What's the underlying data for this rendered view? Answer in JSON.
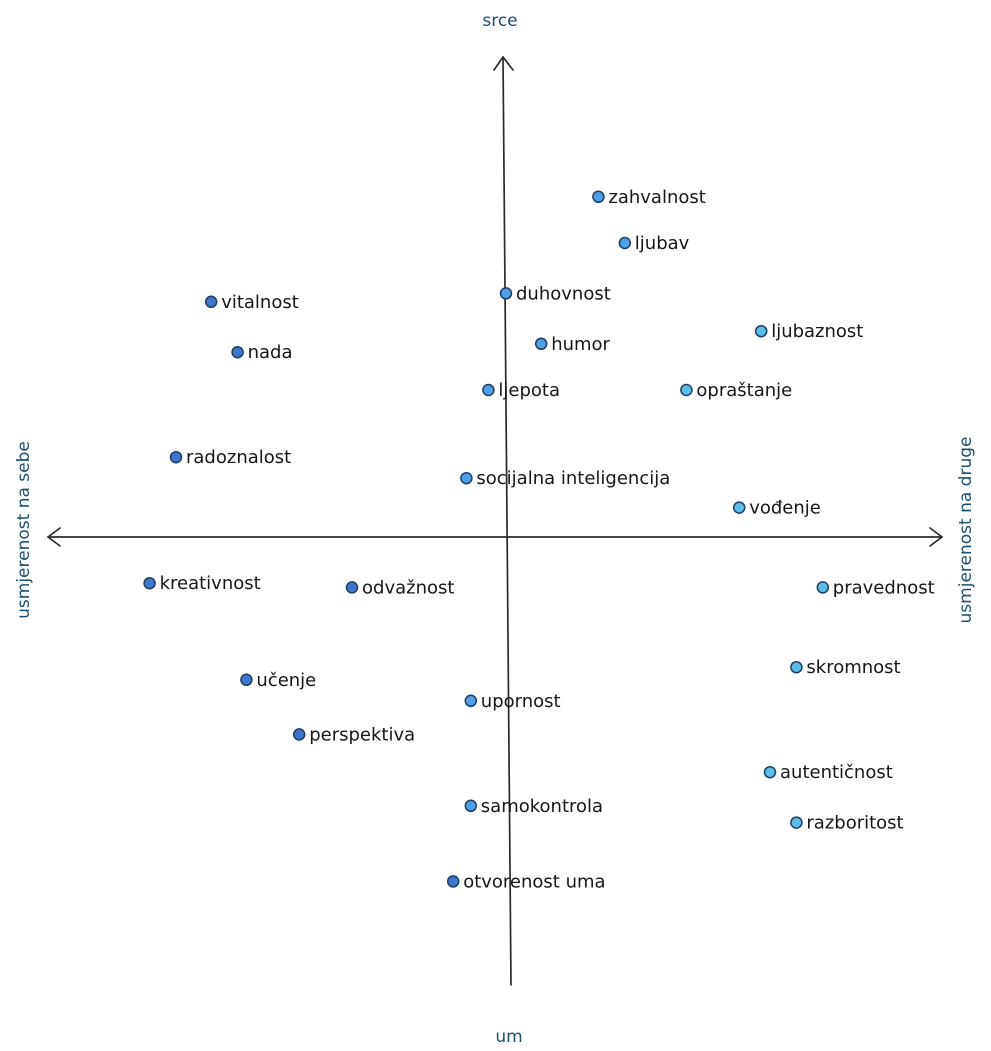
{
  "axes": {
    "top": "srce",
    "bottom": "um",
    "left": "usmjerenost na sebe",
    "right": "usmjerenost na druge"
  },
  "colors": {
    "dot_dark": "#3f76cc",
    "dot_mid": "#4f9ee6",
    "dot_light": "#5dbde9",
    "dot_stroke": "#1d3f66",
    "axis_text": "#1d4f6e",
    "axis_line": "#2b2b2b"
  },
  "chart_data": {
    "type": "scatter",
    "xlabel_left": "usmjerenost na sebe",
    "xlabel_right": "usmjerenost na druge",
    "ylabel_top": "srce",
    "ylabel_bottom": "um",
    "xlim": [
      -100,
      100
    ],
    "ylim": [
      -100,
      100
    ],
    "points": [
      {
        "label": "zahvalnost",
        "x": 21,
        "y": 81,
        "shade": "mid"
      },
      {
        "label": "ljubav",
        "x": 27,
        "y": 70,
        "shade": "mid"
      },
      {
        "label": "duhovnost",
        "x": 0,
        "y": 58,
        "shade": "mid"
      },
      {
        "label": "vitalnost",
        "x": -67,
        "y": 56,
        "shade": "dark"
      },
      {
        "label": "ljubaznost",
        "x": 58,
        "y": 49,
        "shade": "light"
      },
      {
        "label": "nada",
        "x": -61,
        "y": 44,
        "shade": "dark"
      },
      {
        "label": "humor",
        "x": 8,
        "y": 46,
        "shade": "mid"
      },
      {
        "label": "ljepota",
        "x": -4,
        "y": 35,
        "shade": "mid"
      },
      {
        "label": "opraštanje",
        "x": 41,
        "y": 35,
        "shade": "light"
      },
      {
        "label": "radoznalost",
        "x": -75,
        "y": 19,
        "shade": "dark"
      },
      {
        "label": "socijalna inteligencija",
        "x": -9,
        "y": 14,
        "shade": "mid"
      },
      {
        "label": "vođenje",
        "x": 53,
        "y": 7,
        "shade": "light"
      },
      {
        "label": "kreativnost",
        "x": -81,
        "y": -11,
        "shade": "dark"
      },
      {
        "label": "odvažnost",
        "x": -35,
        "y": -12,
        "shade": "dark"
      },
      {
        "label": "pravednost",
        "x": 72,
        "y": -12,
        "shade": "light"
      },
      {
        "label": "skromnost",
        "x": 66,
        "y": -31,
        "shade": "light"
      },
      {
        "label": "učenje",
        "x": -59,
        "y": -34,
        "shade": "dark"
      },
      {
        "label": "upornost",
        "x": -8,
        "y": -39,
        "shade": "mid"
      },
      {
        "label": "perspektiva",
        "x": -47,
        "y": -47,
        "shade": "dark"
      },
      {
        "label": "autentičnost",
        "x": 60,
        "y": -56,
        "shade": "light"
      },
      {
        "label": "samokontrola",
        "x": -8,
        "y": -64,
        "shade": "mid"
      },
      {
        "label": "razboritost",
        "x": 66,
        "y": -68,
        "shade": "light"
      },
      {
        "label": "otvorenost uma",
        "x": -12,
        "y": -82,
        "shade": "dark"
      }
    ]
  }
}
